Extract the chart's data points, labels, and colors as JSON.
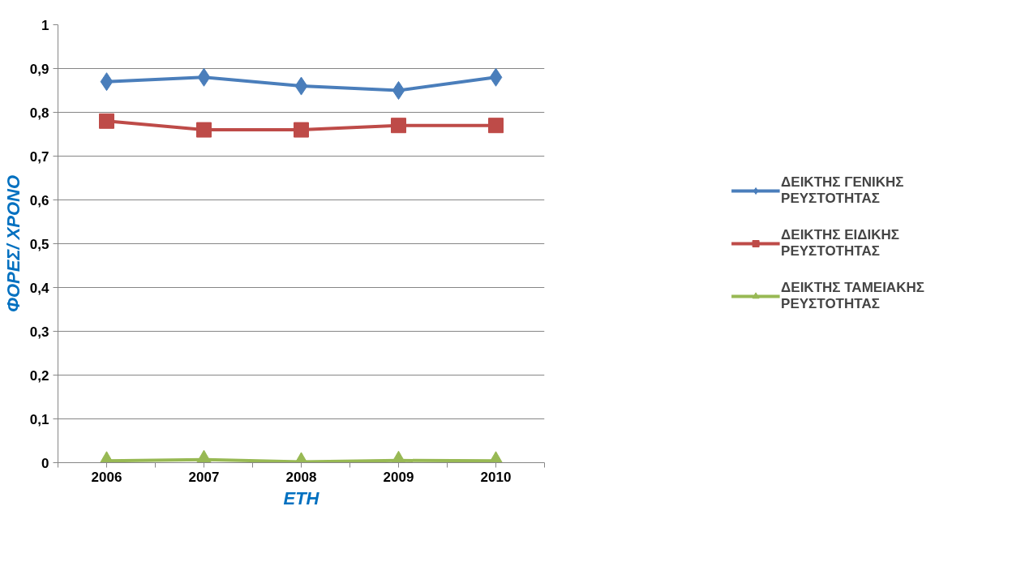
{
  "chart_data": {
    "type": "line",
    "xlabel": "ΕΤΗ",
    "ylabel": "ΦΟΡΕΣ/ ΧΡΟΝΟ",
    "categories": [
      "2006",
      "2007",
      "2008",
      "2009",
      "2010"
    ],
    "series": [
      {
        "name": "ΔΕΙΚΤΗΣ ΓΕΝΙΚΗΣ ΡΕΥΣΤΟΤΗΤΑΣ",
        "color": "#4a7ebb",
        "marker": "diamond",
        "values": [
          0.87,
          0.88,
          0.86,
          0.85,
          0.88
        ]
      },
      {
        "name": "ΔΕΙΚΤΗΣ ΕΙΔΙΚΗΣ ΡΕΥΣΤΟΤΗΤΑΣ",
        "color": "#be4b48",
        "marker": "square",
        "values": [
          0.78,
          0.76,
          0.76,
          0.77,
          0.77
        ]
      },
      {
        "name": "ΔΕΙΚΤΗΣ ΤΑΜΕΙΑΚΗΣ ΡΕΥΣΤΟΤΗΤΑΣ",
        "color": "#98b954",
        "marker": "triangle",
        "values": [
          0.004,
          0.007,
          0.002,
          0.005,
          0.004
        ]
      }
    ],
    "ylim": [
      0,
      1
    ],
    "yticks": [
      {
        "value": 0,
        "label": "0"
      },
      {
        "value": 0.1,
        "label": "0,1"
      },
      {
        "value": 0.2,
        "label": "0,2"
      },
      {
        "value": 0.3,
        "label": "0,3"
      },
      {
        "value": 0.4,
        "label": "0,4"
      },
      {
        "value": 0.5,
        "label": "0,5"
      },
      {
        "value": 0.6,
        "label": "0,6"
      },
      {
        "value": 0.7,
        "label": "0,7"
      },
      {
        "value": 0.8,
        "label": "0,8"
      },
      {
        "value": 0.9,
        "label": "0,9"
      },
      {
        "value": 1,
        "label": "1"
      }
    ],
    "grid": "y",
    "legend": "right",
    "line_style": "solid"
  }
}
